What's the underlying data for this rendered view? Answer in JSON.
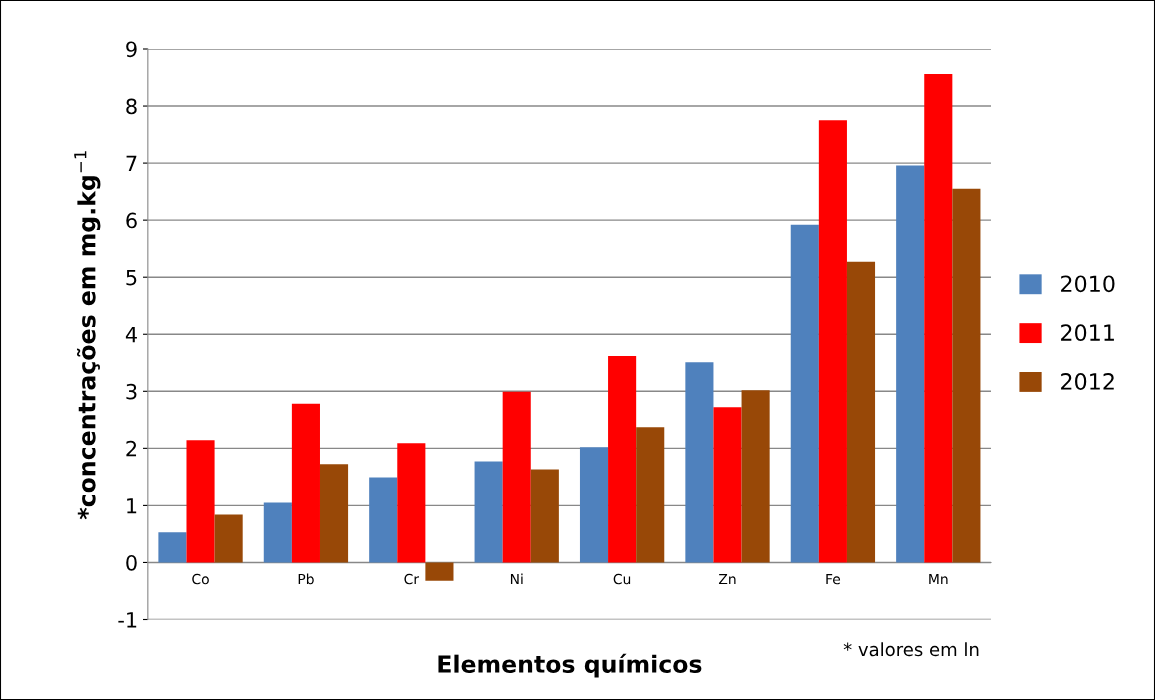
{
  "chart_data": {
    "type": "bar",
    "xlabel": "Elementos químicos",
    "ylabel": "*concentrações em mg.kg$^{−1}$",
    "categories": [
      "Co",
      "Pb",
      "Cr",
      "Ni",
      "Cu",
      "Zn",
      "Fe",
      "Mn"
    ],
    "series": [
      {
        "name": "2010",
        "color": "#4f81bd",
        "values": [
          0.53,
          1.05,
          1.49,
          1.77,
          2.02,
          3.51,
          5.92,
          6.96
        ]
      },
      {
        "name": "2011",
        "color": "#ff0000",
        "values": [
          2.14,
          2.78,
          2.09,
          2.99,
          3.62,
          2.72,
          7.75,
          8.56
        ]
      },
      {
        "name": "2012",
        "color": "#984807",
        "values": [
          0.84,
          1.72,
          -0.32,
          1.63,
          2.37,
          3.02,
          5.27,
          6.55
        ]
      }
    ],
    "ylim": [
      -1,
      9
    ],
    "yticks": [
      -1,
      0,
      1,
      2,
      3,
      4,
      5,
      6,
      7,
      8,
      9
    ],
    "grid": "y",
    "legend": "right",
    "annotations": [
      "* valores em ln"
    ]
  }
}
